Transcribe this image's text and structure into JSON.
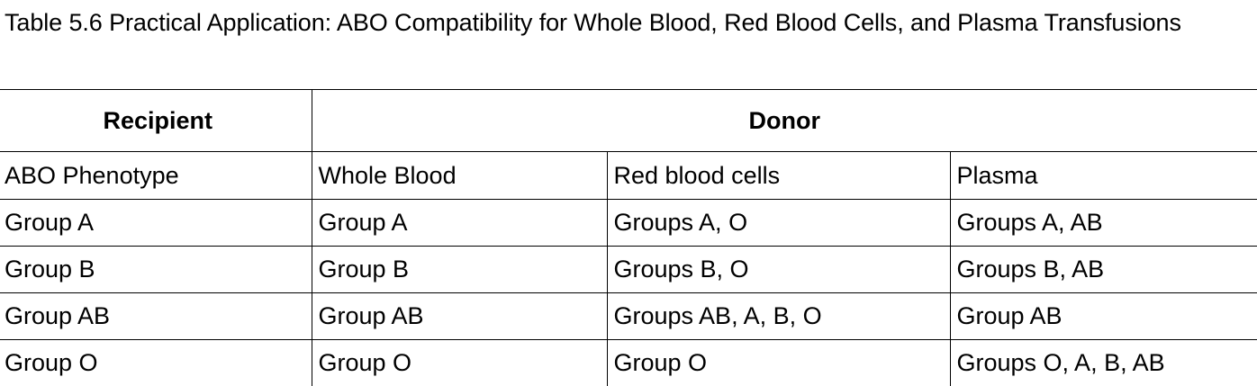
{
  "document": {
    "caption": "Table 5.6 Practical Application: ABO Compatibility for Whole Blood, Red Blood Cells, and Plasma Transfusions"
  },
  "table": {
    "group_headers": {
      "recipient": "Recipient",
      "donor": "Donor"
    },
    "columns": [
      "ABO Phenotype",
      "Whole Blood",
      "Red blood cells",
      "Plasma"
    ],
    "rows": [
      [
        "Group A",
        "Group A",
        "Groups A, O",
        "Groups A, AB"
      ],
      [
        "Group B",
        "Group B",
        "Groups B, O",
        "Groups B, AB"
      ],
      [
        "Group AB",
        "Group AB",
        "Groups AB, A, B, O",
        "Group AB"
      ],
      [
        "Group O",
        "Group O",
        "Group O",
        "Groups O, A, B, AB"
      ]
    ]
  }
}
